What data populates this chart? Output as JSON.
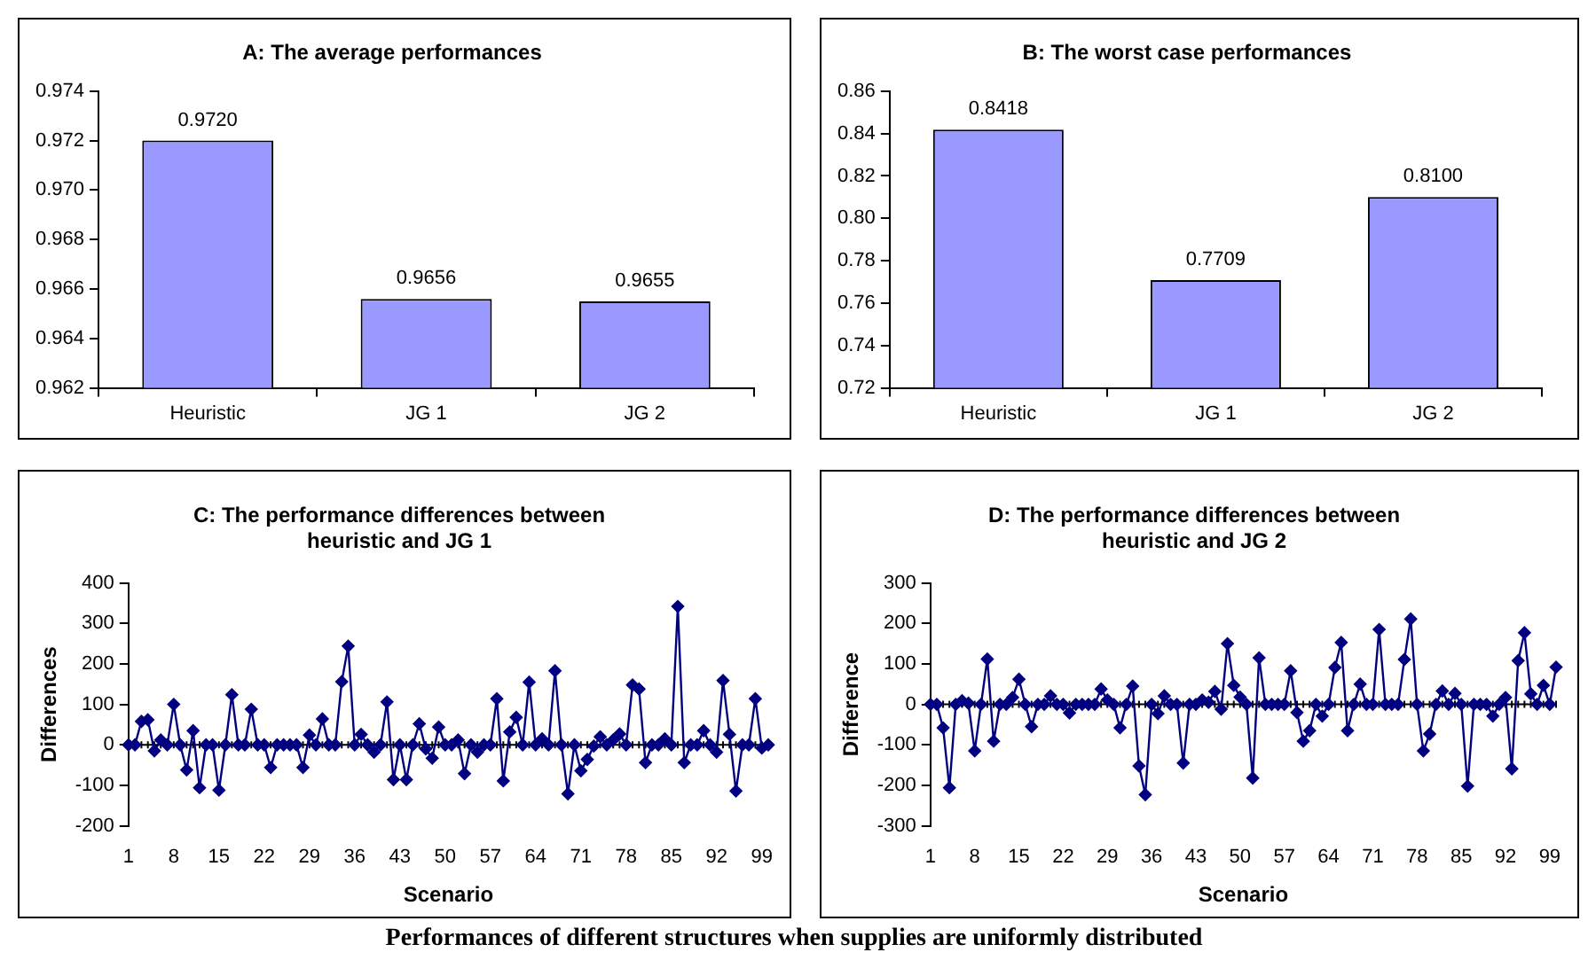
{
  "chart_data": [
    {
      "type": "bar",
      "title": "A: The average performances",
      "categories": [
        "Heuristic",
        "JG 1",
        "JG 2"
      ],
      "values": [
        0.972,
        0.9656,
        0.9655
      ],
      "value_labels": [
        "0.9720",
        "0.9656",
        "0.9655"
      ],
      "color": "#9999ff",
      "ylim": [
        0.962,
        0.974
      ],
      "yticks": [
        0.962,
        0.964,
        0.966,
        0.968,
        {
          "value": 0.97,
          "label": "0.970"
        },
        0.972,
        0.974
      ]
    },
    {
      "type": "bar",
      "title": "B: The worst case performances",
      "categories": [
        "Heuristic",
        "JG 1",
        "JG 2"
      ],
      "values": [
        0.8418,
        0.7709,
        0.81
      ],
      "value_labels": [
        "0.8418",
        "0.7709",
        "0.8100"
      ],
      "color": "#9999ff",
      "ylim": [
        0.72,
        0.86
      ],
      "yticks": [
        0.72,
        0.74,
        0.76,
        0.78,
        {
          "value": 0.8,
          "label": "0.80"
        },
        0.82,
        0.84,
        0.86
      ]
    },
    {
      "type": "line",
      "title": "C: The performance differences between heuristic and JG 1",
      "xlabel": "Scenario",
      "ylabel": "Differences",
      "color": "#000080",
      "marker": "diamond",
      "line_style": "solid",
      "ylim": [
        -200,
        400
      ],
      "yticks": [
        -200,
        -100,
        0,
        100,
        200,
        300,
        400
      ],
      "categories": [
        "1",
        null,
        null,
        null,
        null,
        null,
        null,
        "8",
        null,
        null,
        null,
        null,
        null,
        null,
        "15",
        null,
        null,
        null,
        null,
        null,
        null,
        "22",
        null,
        null,
        null,
        null,
        null,
        null,
        "29",
        null,
        null,
        null,
        null,
        null,
        null,
        "36",
        null,
        null,
        null,
        null,
        null,
        null,
        "43",
        null,
        null,
        null,
        null,
        null,
        null,
        "50",
        null,
        null,
        null,
        null,
        null,
        null,
        "57",
        null,
        null,
        null,
        null,
        null,
        null,
        "64",
        null,
        null,
        null,
        null,
        null,
        null,
        "71",
        null,
        null,
        null,
        null,
        null,
        null,
        "78",
        null,
        null,
        null,
        null,
        null,
        null,
        "85",
        null,
        null,
        null,
        null,
        null,
        null,
        "92",
        null,
        null,
        null,
        null,
        null,
        null,
        "99",
        null
      ],
      "values": [
        0,
        0,
        58,
        62,
        -15,
        12,
        0,
        100,
        0,
        -62,
        35,
        -106,
        0,
        0,
        -112,
        0,
        124,
        0,
        0,
        88,
        0,
        0,
        -56,
        0,
        0,
        0,
        0,
        -56,
        24,
        0,
        64,
        0,
        0,
        156,
        244,
        0,
        26,
        0,
        -18,
        0,
        106,
        -86,
        0,
        -86,
        0,
        52,
        -10,
        -33,
        44,
        0,
        0,
        12,
        -71,
        0,
        -18,
        0,
        0,
        114,
        -89,
        32,
        68,
        0,
        155,
        0,
        15,
        0,
        183,
        0,
        -121,
        0,
        -64,
        -36,
        -3,
        20,
        0,
        12,
        27,
        0,
        148,
        138,
        -44,
        0,
        0,
        15,
        0,
        342,
        -44,
        0,
        0,
        35,
        0,
        -18,
        159,
        26,
        -114,
        0,
        0,
        114,
        -8,
        0
      ]
    },
    {
      "type": "line",
      "title": "D: The performance differences between heuristic and JG 2",
      "xlabel": "Scenario",
      "ylabel": "Difference",
      "color": "#000080",
      "marker": "diamond",
      "line_style": "solid",
      "ylim": [
        -300,
        300
      ],
      "yticks": [
        -300,
        -200,
        -100,
        0,
        100,
        200,
        300
      ],
      "categories": [
        "1",
        null,
        null,
        null,
        null,
        null,
        null,
        "8",
        null,
        null,
        null,
        null,
        null,
        null,
        "15",
        null,
        null,
        null,
        null,
        null,
        null,
        "22",
        null,
        null,
        null,
        null,
        null,
        null,
        "29",
        null,
        null,
        null,
        null,
        null,
        null,
        "36",
        null,
        null,
        null,
        null,
        null,
        null,
        "43",
        null,
        null,
        null,
        null,
        null,
        null,
        "50",
        null,
        null,
        null,
        null,
        null,
        null,
        "57",
        null,
        null,
        null,
        null,
        null,
        null,
        "64",
        null,
        null,
        null,
        null,
        null,
        null,
        "71",
        null,
        null,
        null,
        null,
        null,
        null,
        "78",
        null,
        null,
        null,
        null,
        null,
        null,
        "85",
        null,
        null,
        null,
        null,
        null,
        null,
        "92",
        null,
        null,
        null,
        null,
        null,
        null,
        "99",
        null
      ],
      "values": [
        0,
        0,
        -58,
        -206,
        0,
        9,
        3,
        -115,
        0,
        112,
        -91,
        0,
        0,
        17,
        62,
        0,
        -55,
        0,
        0,
        21,
        0,
        0,
        -21,
        0,
        0,
        0,
        0,
        38,
        11,
        0,
        -58,
        0,
        45,
        -152,
        -223,
        0,
        -23,
        21,
        0,
        0,
        -145,
        0,
        0,
        11,
        5,
        32,
        -12,
        150,
        47,
        18,
        0,
        -182,
        115,
        0,
        0,
        0,
        0,
        83,
        -20,
        -91,
        -65,
        0,
        -29,
        0,
        91,
        153,
        -65,
        0,
        50,
        0,
        0,
        185,
        0,
        0,
        0,
        111,
        211,
        0,
        -115,
        -73,
        0,
        33,
        0,
        27,
        0,
        -202,
        0,
        0,
        0,
        -29,
        0,
        17,
        -159,
        108,
        177,
        26,
        0,
        47,
        0,
        92
      ]
    },
    {
      "type": "other",
      "title": "Performances of different structures when supplies are uniformly distributed"
    }
  ]
}
